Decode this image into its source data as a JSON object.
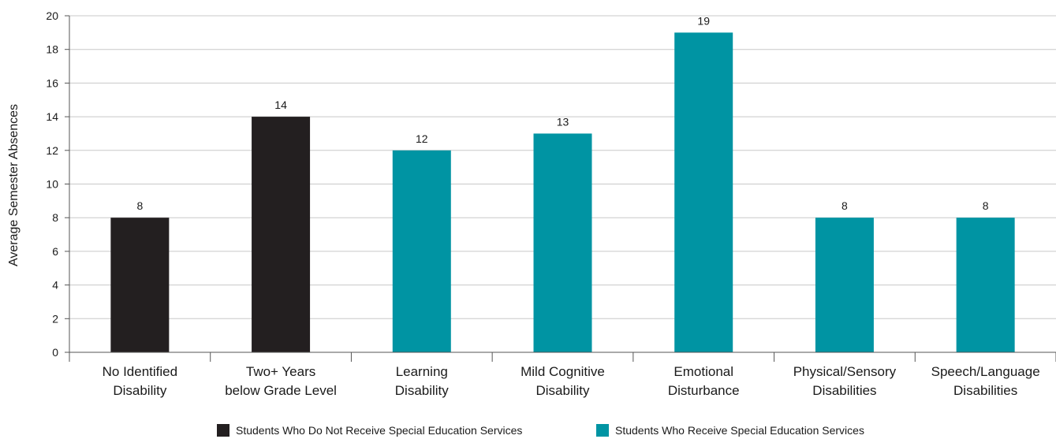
{
  "colors": {
    "not_receiving": "#231f20",
    "receiving": "#0094a3",
    "grid": "#c8c8c8",
    "axis": "#555555"
  },
  "chart_data": {
    "type": "bar",
    "ylabel": "Average Semester Absences",
    "xlabel": "",
    "ylim": [
      0,
      20
    ],
    "yticks": [
      0,
      2,
      4,
      6,
      8,
      10,
      12,
      14,
      16,
      18,
      20
    ],
    "grid": true,
    "legend_position": "bottom",
    "categories": [
      [
        "No Identified",
        "Disability"
      ],
      [
        "Two+ Years",
        "below Grade Level"
      ],
      [
        "Learning",
        "Disability"
      ],
      [
        "Mild Cognitive",
        "Disability"
      ],
      [
        "Emotional",
        "Disturbance"
      ],
      [
        "Physical/Sensory",
        "Disabilities"
      ],
      [
        "Speech/Language",
        "Disabilities"
      ]
    ],
    "values": [
      8,
      14,
      12,
      13,
      19,
      8,
      8
    ],
    "bar_group": [
      0,
      0,
      1,
      1,
      1,
      1,
      1
    ],
    "series": [
      {
        "name": "Students Who Do Not Receive Special Education Services"
      },
      {
        "name": "Students Who Receive Special Education Services"
      }
    ]
  }
}
